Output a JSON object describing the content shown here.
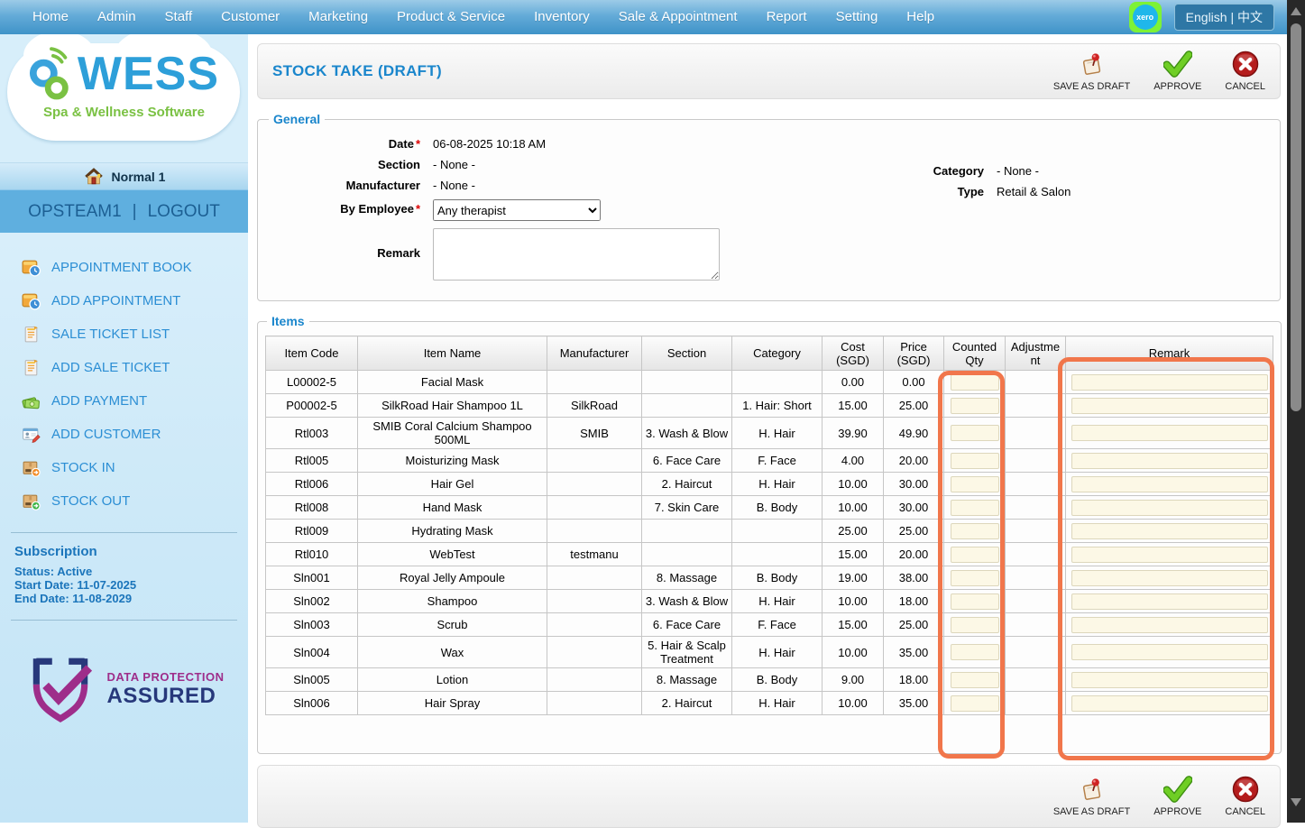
{
  "nav": {
    "items": [
      "Home",
      "Admin",
      "Staff",
      "Customer",
      "Marketing",
      "Product & Service",
      "Inventory",
      "Sale & Appointment",
      "Report",
      "Setting",
      "Help"
    ],
    "xero_label": "xero",
    "language": "English | 中文"
  },
  "sidebar": {
    "logo": {
      "title": "WESS",
      "subtitle": "Spa & Wellness Software"
    },
    "outlet": "Normal 1",
    "user": "OPSTEAM1",
    "divider": "|",
    "logout": "LOGOUT",
    "menu": [
      {
        "label": "APPOINTMENT BOOK",
        "icon": "appointment-book-icon"
      },
      {
        "label": "ADD APPOINTMENT",
        "icon": "add-appointment-icon"
      },
      {
        "label": "SALE TICKET LIST",
        "icon": "sale-ticket-list-icon"
      },
      {
        "label": "ADD SALE TICKET",
        "icon": "add-sale-ticket-icon"
      },
      {
        "label": "ADD PAYMENT",
        "icon": "add-payment-icon"
      },
      {
        "label": "ADD CUSTOMER",
        "icon": "add-customer-icon"
      },
      {
        "label": "STOCK IN",
        "icon": "stock-in-icon"
      },
      {
        "label": "STOCK OUT",
        "icon": "stock-out-icon"
      }
    ],
    "subscription": {
      "title": "Subscription",
      "status": "Status: Active",
      "start": "Start Date: 11-07-2025",
      "end": "End Date: 11-08-2029"
    },
    "badge": {
      "line1": "DATA PROTECTION",
      "line2": "ASSURED"
    }
  },
  "header": {
    "title": "STOCK TAKE (DRAFT)"
  },
  "actions": {
    "save": "SAVE AS DRAFT",
    "approve": "APPROVE",
    "cancel": "CANCEL"
  },
  "general": {
    "legend": "General",
    "required_marker": "*",
    "date_label": "Date",
    "date_value": "06-08-2025 10:18 AM",
    "section_label": "Section",
    "section_value": "- None -",
    "manufacturer_label": "Manufacturer",
    "manufacturer_value": "- None -",
    "employee_label": "By Employee",
    "employee_value": "Any therapist",
    "remark_label": "Remark",
    "category_label": "Category",
    "category_value": "- None -",
    "type_label": "Type",
    "type_value": "Retail & Salon"
  },
  "items": {
    "legend": "Items",
    "columns": [
      "Item Code",
      "Item Name",
      "Manufacturer",
      "Section",
      "Category",
      "Cost (SGD)",
      "Price (SGD)",
      "Counted Qty",
      "Adjustment",
      "Remark"
    ],
    "rows": [
      {
        "code": "L00002-5",
        "name": "Facial Mask",
        "manufacturer": "",
        "section": "",
        "category": "",
        "cost": "0.00",
        "price": "0.00"
      },
      {
        "code": "P00002-5",
        "name": "SilkRoad Hair Shampoo 1L",
        "manufacturer": "SilkRoad",
        "section": "",
        "category": "1. Hair: Short",
        "cost": "15.00",
        "price": "25.00"
      },
      {
        "code": "Rtl003",
        "name": "SMIB Coral Calcium Shampoo 500ML",
        "manufacturer": "SMIB",
        "section": "3. Wash & Blow",
        "category": "H. Hair",
        "cost": "39.90",
        "price": "49.90"
      },
      {
        "code": "Rtl005",
        "name": "Moisturizing Mask",
        "manufacturer": "",
        "section": "6. Face Care",
        "category": "F. Face",
        "cost": "4.00",
        "price": "20.00"
      },
      {
        "code": "Rtl006",
        "name": "Hair Gel",
        "manufacturer": "",
        "section": "2. Haircut",
        "category": "H. Hair",
        "cost": "10.00",
        "price": "30.00"
      },
      {
        "code": "Rtl008",
        "name": "Hand Mask",
        "manufacturer": "",
        "section": "7. Skin Care",
        "category": "B. Body",
        "cost": "10.00",
        "price": "30.00"
      },
      {
        "code": "Rtl009",
        "name": "Hydrating Mask",
        "manufacturer": "",
        "section": "",
        "category": "",
        "cost": "25.00",
        "price": "25.00"
      },
      {
        "code": "Rtl010",
        "name": "WebTest",
        "manufacturer": "testmanu",
        "section": "",
        "category": "",
        "cost": "15.00",
        "price": "20.00"
      },
      {
        "code": "Sln001",
        "name": "Royal Jelly Ampoule",
        "manufacturer": "",
        "section": "8. Massage",
        "category": "B. Body",
        "cost": "19.00",
        "price": "38.00"
      },
      {
        "code": "Sln002",
        "name": "Shampoo",
        "manufacturer": "",
        "section": "3. Wash & Blow",
        "category": "H. Hair",
        "cost": "10.00",
        "price": "18.00"
      },
      {
        "code": "Sln003",
        "name": "Scrub",
        "manufacturer": "",
        "section": "6. Face Care",
        "category": "F. Face",
        "cost": "15.00",
        "price": "25.00"
      },
      {
        "code": "Sln004",
        "name": "Wax",
        "manufacturer": "",
        "section": "5. Hair & Scalp Treatment",
        "category": "H. Hair",
        "cost": "10.00",
        "price": "35.00"
      },
      {
        "code": "Sln005",
        "name": "Lotion",
        "manufacturer": "",
        "section": "8. Massage",
        "category": "B. Body",
        "cost": "9.00",
        "price": "18.00"
      },
      {
        "code": "Sln006",
        "name": "Hair Spray",
        "manufacturer": "",
        "section": "2. Haircut",
        "category": "H. Hair",
        "cost": "10.00",
        "price": "35.00"
      }
    ]
  },
  "colors": {
    "accent_blue": "#1a86cc",
    "nav_blue": "#3f93c8",
    "highlight_orange": "#f1764b",
    "input_cream": "#fcf8e6",
    "badge_purple": "#9e2d8a",
    "badge_navy": "#27387b"
  }
}
